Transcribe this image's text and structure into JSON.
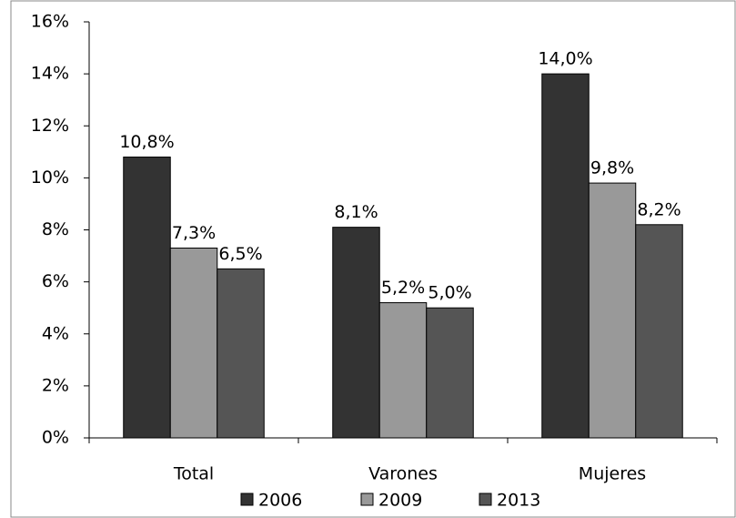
{
  "chart_data": {
    "type": "bar",
    "categories": [
      "Total",
      "Varones",
      "Mujeres"
    ],
    "series": [
      {
        "name": "2006",
        "color": "#333333",
        "values": [
          10.8,
          8.1,
          14.0
        ],
        "value_labels": [
          "10,8%",
          "8,1%",
          "14,0%"
        ]
      },
      {
        "name": "2009",
        "color": "#999999",
        "values": [
          7.3,
          5.2,
          9.8
        ],
        "value_labels": [
          "7,3%",
          "5,2%",
          "9,8%"
        ]
      },
      {
        "name": "2013",
        "color": "#555555",
        "values": [
          6.5,
          5.0,
          8.2
        ],
        "value_labels": [
          "6,5%",
          "5,0%",
          "8,2%"
        ]
      }
    ],
    "ylim": [
      0,
      16
    ],
    "yticks": [
      {
        "value": 0,
        "label": "0%"
      },
      {
        "value": 2,
        "label": "2%"
      },
      {
        "value": 4,
        "label": "4%"
      },
      {
        "value": 6,
        "label": "6%"
      },
      {
        "value": 8,
        "label": "8%"
      },
      {
        "value": 10,
        "label": "10%"
      },
      {
        "value": 12,
        "label": "12%"
      },
      {
        "value": 14,
        "label": "14%"
      },
      {
        "value": 16,
        "label": "16%"
      }
    ],
    "legend": "bottom"
  }
}
